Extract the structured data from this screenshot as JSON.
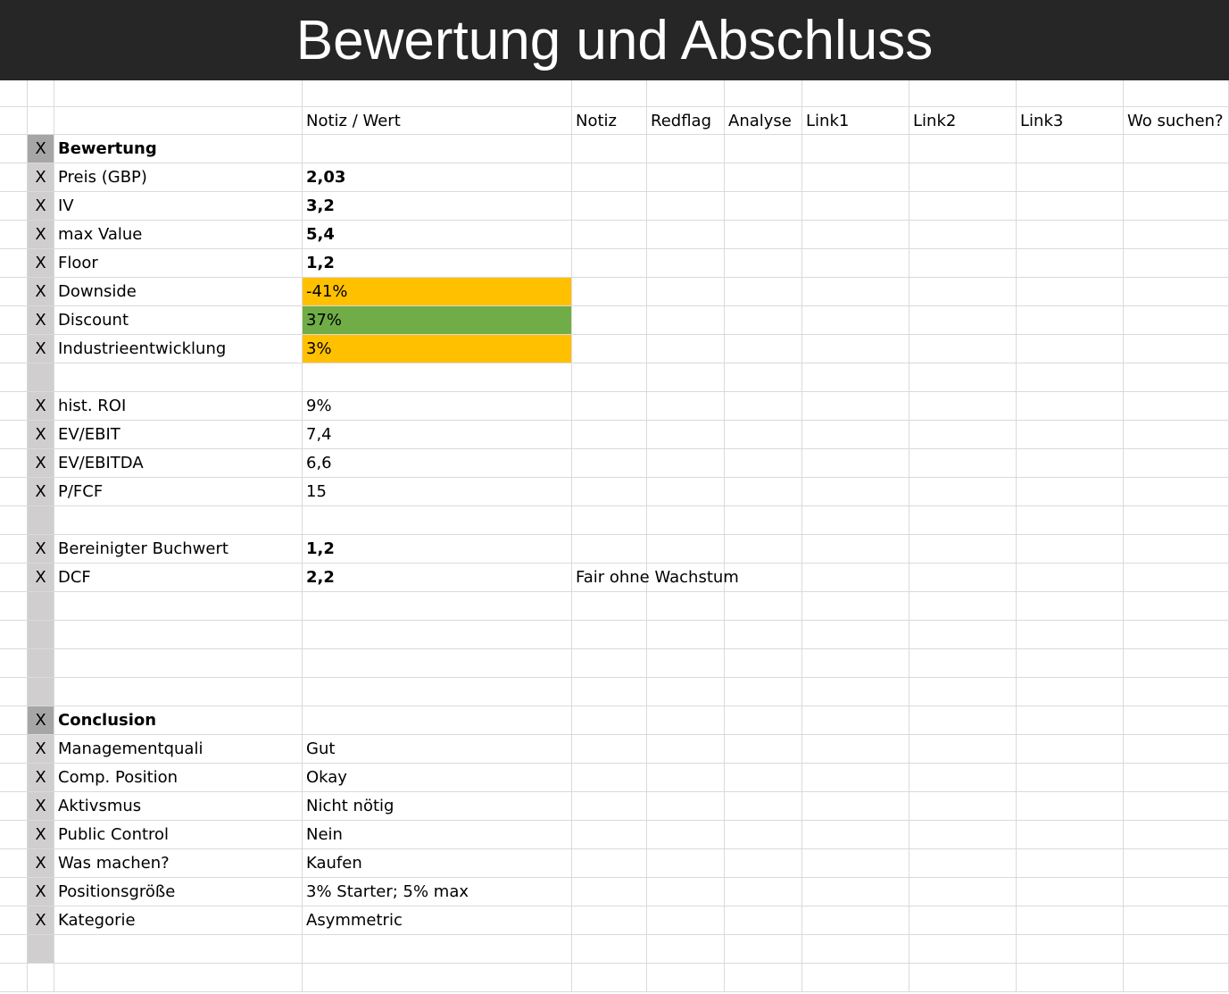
{
  "header": {
    "title": "Bewertung und Abschluss"
  },
  "table": {
    "columns": [
      "Notiz / Wert",
      "Notiz",
      "Redflag",
      "Analyse",
      "Link1",
      "Link2",
      "Link3",
      "Wo suchen?"
    ],
    "sections": [
      {
        "marker": "X",
        "title": "Bewertung",
        "groups": [
          [
            {
              "marker": "X",
              "label": "Preis (GBP)",
              "value": "2,03",
              "bold": true
            },
            {
              "marker": "X",
              "label": "IV",
              "value": "3,2",
              "bold": true
            },
            {
              "marker": "X",
              "label": "max Value",
              "value": "5,4",
              "bold": true
            },
            {
              "marker": "X",
              "label": "Floor",
              "value": "1,2",
              "bold": true
            },
            {
              "marker": "X",
              "label": "Downside",
              "value": "-41%",
              "fill": "#ffc000"
            },
            {
              "marker": "X",
              "label": "Discount",
              "value": "37%",
              "fill": "#70ad47"
            },
            {
              "marker": "X",
              "label": "Industrieentwicklung",
              "value": "3%",
              "fill": "#ffc000"
            }
          ],
          [
            {
              "marker": "X",
              "label": "hist. ROI",
              "value": "9%"
            },
            {
              "marker": "X",
              "label": "EV/EBIT",
              "value": "7,4"
            },
            {
              "marker": "X",
              "label": "EV/EBITDA",
              "value": "6,6"
            },
            {
              "marker": "X",
              "label": "P/FCF",
              "value": "15"
            }
          ],
          [
            {
              "marker": "X",
              "label": "Bereinigter Buchwert",
              "value": "1,2",
              "bold": true
            },
            {
              "marker": "X",
              "label": "DCF",
              "value": "2,2",
              "bold": true,
              "note": "Fair ohne Wachstum"
            }
          ]
        ]
      },
      {
        "marker": "X",
        "title": "Conclusion",
        "groups": [
          [
            {
              "marker": "X",
              "label": "Managementquali",
              "value": "Gut"
            },
            {
              "marker": "X",
              "label": "Comp. Position",
              "value": "Okay"
            },
            {
              "marker": "X",
              "label": "Aktivsmus",
              "value": "Nicht nötig"
            },
            {
              "marker": "X",
              "label": "Public Control",
              "value": "Nein"
            },
            {
              "marker": "X",
              "label": "Was machen?",
              "value": "Kaufen"
            },
            {
              "marker": "X",
              "label": "Positionsgröße",
              "value": "3% Starter; 5% max"
            },
            {
              "marker": "X",
              "label": "Kategorie",
              "value": "Asymmetric"
            }
          ]
        ]
      }
    ]
  }
}
